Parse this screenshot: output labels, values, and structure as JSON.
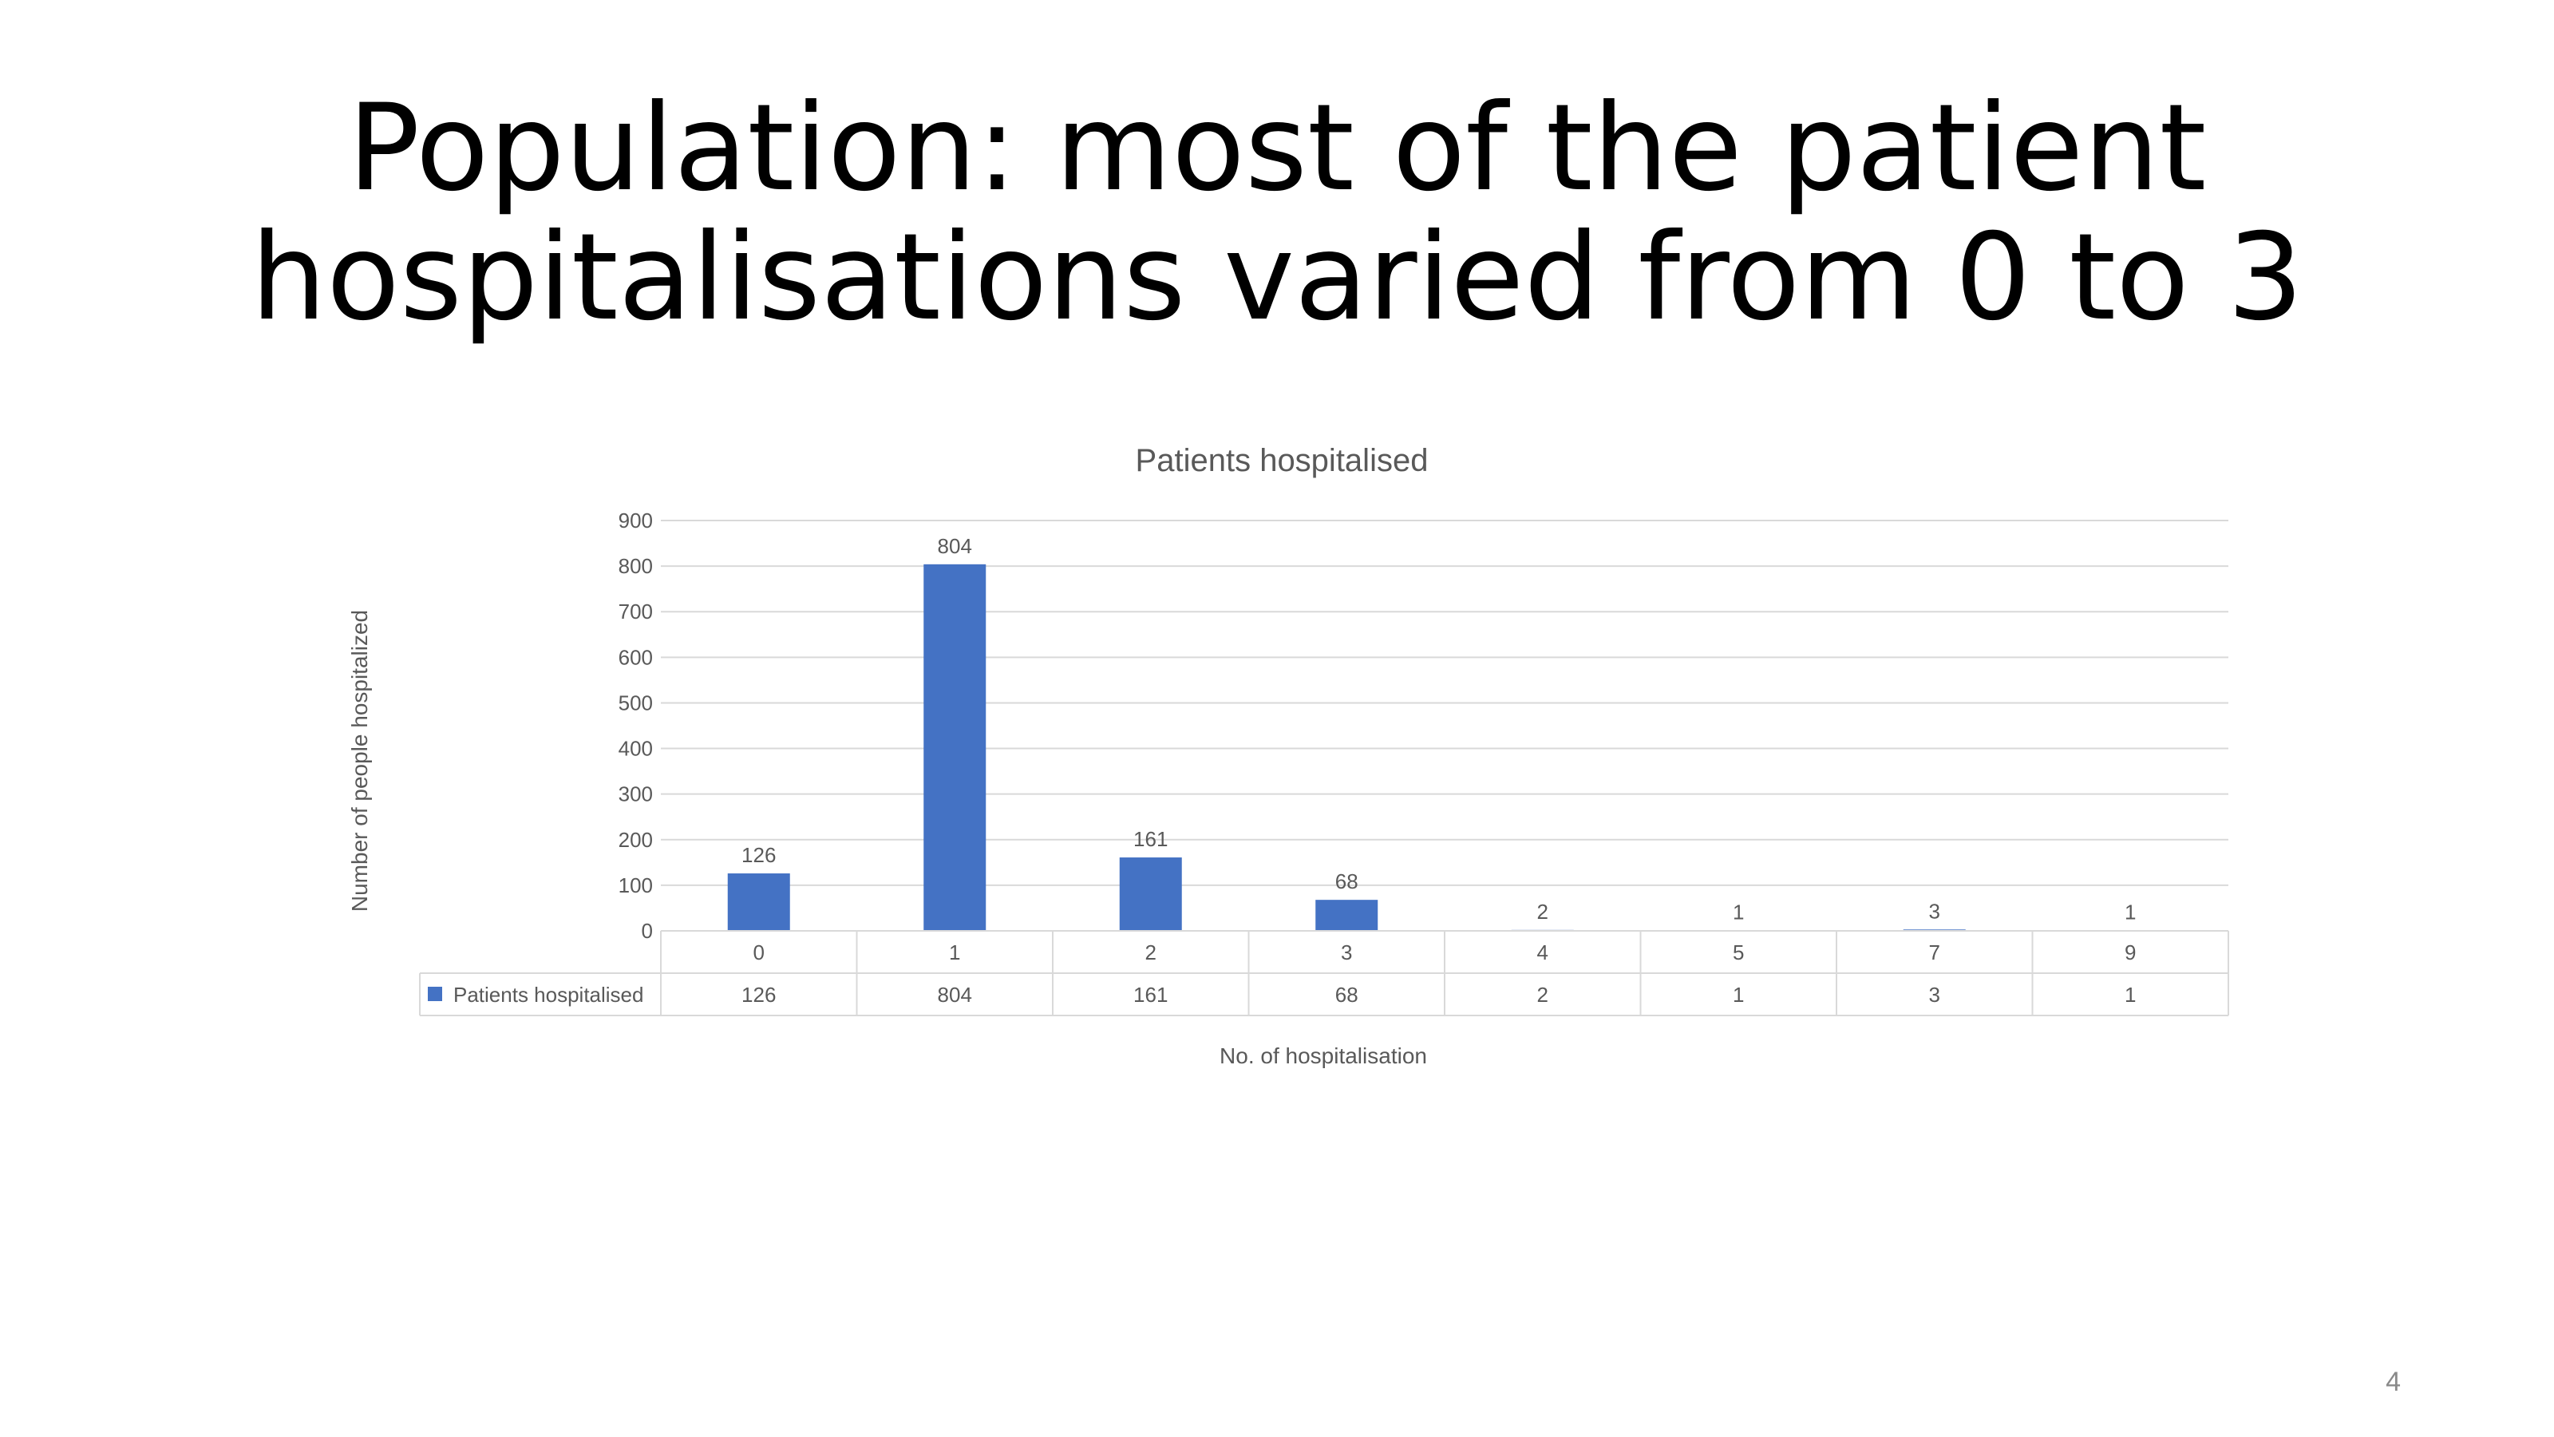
{
  "slide": {
    "title_line1": "Population: most of the patient",
    "title_line2": "hospitalisations varied from 0 to 3",
    "page_number": "4"
  },
  "chart_data": {
    "type": "bar",
    "title": "Patients hospitalised",
    "xlabel": "No. of hospitalisation",
    "ylabel": "Number of people hospitalized",
    "categories": [
      "0",
      "1",
      "2",
      "3",
      "4",
      "5",
      "7",
      "9"
    ],
    "series": [
      {
        "name": "Patients hospitalised",
        "values": [
          126,
          804,
          161,
          68,
          2,
          1,
          3,
          1
        ],
        "color": "#4472C4"
      }
    ],
    "ylim": [
      0,
      900
    ],
    "yticks": [
      0,
      100,
      200,
      300,
      400,
      500,
      600,
      700,
      800,
      900
    ],
    "grid": true,
    "data_labels": true,
    "data_table": true,
    "colors": {
      "bar": "#4472C4",
      "grid": "#d9d9d9",
      "text": "#595959"
    }
  }
}
